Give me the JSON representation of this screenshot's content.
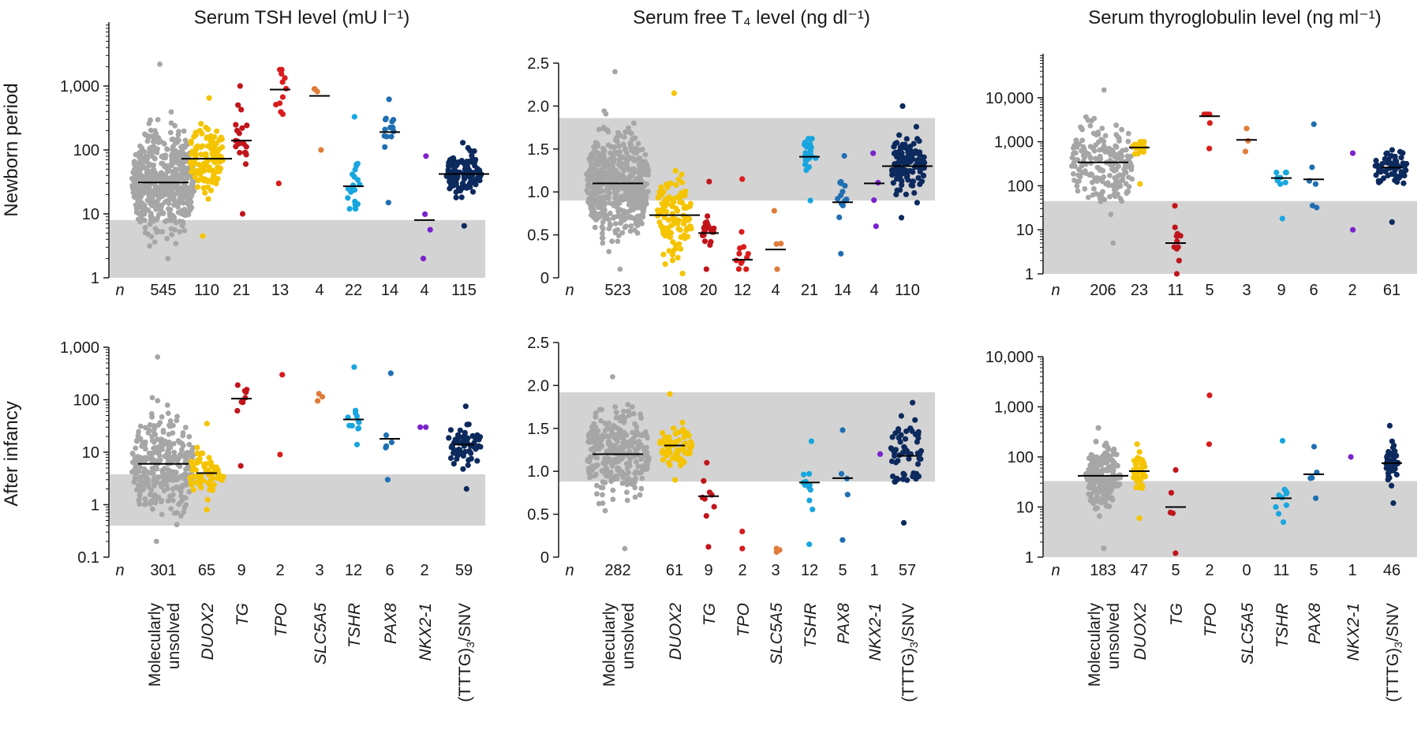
{
  "row_labels": [
    "Newborn period",
    "After infancy"
  ],
  "n_label": "n",
  "x_group_labels": [
    "Molecularly unsolved",
    "DUOX2",
    "TG",
    "TPO",
    "SLC5A5",
    "TSHR",
    "PAX8",
    "NKX2-1",
    "(TTTG)3/SNV"
  ],
  "colors": {
    "Molecularly unsolved": "#a6a6a6",
    "DUOX2": "#f5c400",
    "TG": "#c0151b",
    "TPO": "#d91c1c",
    "SLC5A5": "#e07b39",
    "TSHR": "#17a6df",
    "PAX8": "#1f6fb2",
    "NKX2-1": "#7b22cc",
    "(TTTG)3/SNV": "#0d2a5e",
    "reference_band": "#d3d3d3",
    "median_line": "#000000"
  },
  "chart_data": [
    {
      "type": "scatter",
      "panel": "tsh-newborn",
      "title": "Serum TSH level (mU l⁻¹)",
      "row": "Newborn period",
      "yscale": "log",
      "ylim": [
        1,
        10000
      ],
      "yticks": [
        1,
        10,
        100,
        1000
      ],
      "ytick_labels": [
        "1",
        "10",
        "100",
        "1,000"
      ],
      "reference_range": [
        1,
        8
      ],
      "groups": [
        "Molecularly unsolved",
        "DUOX2",
        "TG",
        "TPO",
        "SLC5A5",
        "TSHR",
        "PAX8",
        "NKX2-1",
        "(TTTG)3/SNV"
      ],
      "n": [
        545,
        110,
        21,
        13,
        4,
        22,
        14,
        4,
        115
      ],
      "n_labels": [
        "545",
        "110",
        "21",
        "13",
        "4",
        "22",
        "14",
        "4",
        "115"
      ],
      "medians": [
        31,
        73,
        140,
        880,
        700,
        27,
        190,
        8,
        42
      ],
      "ranges": [
        [
          2,
          2200
        ],
        [
          4.5,
          650
        ],
        [
          10,
          1000
        ],
        [
          30,
          1800
        ],
        [
          100,
          900
        ],
        [
          12,
          330
        ],
        [
          15,
          620
        ],
        [
          2,
          80
        ],
        [
          6.5,
          130
        ]
      ]
    },
    {
      "type": "scatter",
      "panel": "t4-newborn",
      "title": "Serum free T₄ level (ng dl⁻¹)",
      "row": "Newborn period",
      "yscale": "linear",
      "ylim": [
        0,
        2.5
      ],
      "yticks": [
        0,
        0.5,
        1.0,
        1.5,
        2.0,
        2.5
      ],
      "ytick_labels": [
        "0",
        "0.5",
        "1.0",
        "1.5",
        "2.0",
        "2.5"
      ],
      "reference_range": [
        0.9,
        1.86
      ],
      "groups": [
        "Molecularly unsolved",
        "DUOX2",
        "TG",
        "TPO",
        "SLC5A5",
        "TSHR",
        "PAX8",
        "NKX2-1",
        "(TTTG)3/SNV"
      ],
      "n": [
        523,
        108,
        20,
        12,
        4,
        21,
        14,
        4,
        110
      ],
      "n_labels": [
        "523",
        "108",
        "20",
        "12",
        "4",
        "21",
        "14",
        "4",
        "110"
      ],
      "medians": [
        1.1,
        0.73,
        0.52,
        0.21,
        0.33,
        1.41,
        0.88,
        1.1,
        1.3
      ],
      "ranges": [
        [
          0.1,
          2.4
        ],
        [
          0.05,
          2.15
        ],
        [
          0.1,
          1.12
        ],
        [
          0.1,
          1.15
        ],
        [
          0.1,
          0.78
        ],
        [
          0.9,
          1.62
        ],
        [
          0.28,
          1.42
        ],
        [
          0.6,
          1.45
        ],
        [
          0.7,
          2.0
        ]
      ]
    },
    {
      "type": "scatter",
      "panel": "tg-newborn",
      "title": "Serum thyroglobulin level (ng ml⁻¹)",
      "row": "Newborn period",
      "yscale": "log",
      "ylim": [
        1,
        100000
      ],
      "yticks": [
        1,
        10,
        100,
        1000,
        10000
      ],
      "ytick_labels": [
        "1",
        "10",
        "100",
        "1,000",
        "10,000"
      ],
      "reference_range": [
        1,
        45
      ],
      "groups": [
        "Molecularly unsolved",
        "DUOX2",
        "TG",
        "TPO",
        "SLC5A5",
        "TSHR",
        "PAX8",
        "NKX2-1",
        "(TTTG)3/SNV"
      ],
      "n": [
        206,
        23,
        11,
        5,
        3,
        9,
        6,
        2,
        61
      ],
      "n_labels": [
        "206",
        "23",
        "11",
        "5",
        "3",
        "9",
        "6",
        "2",
        "61"
      ],
      "medians": [
        340,
        740,
        5,
        3800,
        1100,
        150,
        140,
        null,
        260
      ],
      "ranges": [
        [
          5,
          15000
        ],
        [
          110,
          1000
        ],
        [
          1,
          35
        ],
        [
          700,
          4200
        ],
        [
          600,
          2000
        ],
        [
          18,
          200
        ],
        [
          32,
          2500
        ],
        [
          10,
          550
        ],
        [
          15,
          650
        ]
      ]
    },
    {
      "type": "scatter",
      "panel": "tsh-infancy",
      "title": "",
      "row": "After infancy",
      "yscale": "log",
      "ylim": [
        0.1,
        1000
      ],
      "yticks": [
        0.1,
        1,
        10,
        100,
        1000
      ],
      "ytick_labels": [
        "0.1",
        "1",
        "10",
        "100",
        "1,000"
      ],
      "reference_range": [
        0.4,
        3.8
      ],
      "groups": [
        "Molecularly unsolved",
        "DUOX2",
        "TG",
        "TPO",
        "SLC5A5",
        "TSHR",
        "PAX8",
        "NKX2-1",
        "(TTTG)3/SNV"
      ],
      "n": [
        301,
        65,
        9,
        2,
        3,
        12,
        6,
        2,
        59
      ],
      "n_labels": [
        "301",
        "65",
        "9",
        "2",
        "3",
        "12",
        "6",
        "2",
        "59"
      ],
      "medians": [
        6,
        4,
        105,
        null,
        null,
        42,
        18,
        null,
        14
      ],
      "ranges": [
        [
          0.2,
          650
        ],
        [
          0.8,
          35
        ],
        [
          5.5,
          190
        ],
        [
          9,
          300
        ],
        [
          95,
          130
        ],
        [
          14,
          420
        ],
        [
          3,
          320
        ],
        [
          30,
          30
        ],
        [
          2,
          75
        ]
      ]
    },
    {
      "type": "scatter",
      "panel": "t4-infancy",
      "title": "",
      "row": "After infancy",
      "yscale": "linear",
      "ylim": [
        0,
        2.5
      ],
      "yticks": [
        0,
        0.5,
        1.0,
        1.5,
        2.0,
        2.5
      ],
      "ytick_labels": [
        "0",
        "0.5",
        "1.0",
        "1.5",
        "2.0",
        "2.5"
      ],
      "reference_range": [
        0.88,
        1.92
      ],
      "groups": [
        "Molecularly unsolved",
        "DUOX2",
        "TG",
        "TPO",
        "SLC5A5",
        "TSHR",
        "PAX8",
        "NKX2-1",
        "(TTTG)3/SNV"
      ],
      "n": [
        282,
        61,
        9,
        2,
        3,
        12,
        5,
        1,
        57
      ],
      "n_labels": [
        "282",
        "61",
        "9",
        "2",
        "3",
        "12",
        "5",
        "1",
        "57"
      ],
      "medians": [
        1.2,
        1.3,
        0.71,
        null,
        null,
        0.87,
        0.92,
        null,
        1.18
      ],
      "ranges": [
        [
          0.1,
          2.1
        ],
        [
          0.9,
          1.9
        ],
        [
          0.12,
          1.1
        ],
        [
          0.1,
          0.3
        ],
        [
          0.06,
          0.1
        ],
        [
          0.15,
          1.35
        ],
        [
          0.2,
          1.48
        ],
        [
          1.2,
          1.2
        ],
        [
          0.4,
          1.8
        ]
      ]
    },
    {
      "type": "scatter",
      "panel": "tg-infancy",
      "title": "",
      "row": "After infancy",
      "yscale": "log",
      "ylim": [
        1,
        10000
      ],
      "yticks": [
        1,
        10,
        100,
        1000,
        10000
      ],
      "ytick_labels": [
        "1",
        "10",
        "100",
        "1,000",
        "10,000"
      ],
      "reference_range": [
        1,
        33
      ],
      "groups": [
        "Molecularly unsolved",
        "DUOX2",
        "TG",
        "TPO",
        "SLC5A5",
        "TSHR",
        "PAX8",
        "NKX2-1",
        "(TTTG)3/SNV"
      ],
      "n": [
        183,
        47,
        5,
        2,
        0,
        11,
        5,
        1,
        46
      ],
      "n_labels": [
        "183",
        "47",
        "5",
        "2",
        "0",
        "11",
        "5",
        "1",
        "46"
      ],
      "medians": [
        42,
        52,
        10,
        null,
        null,
        15,
        45,
        null,
        75
      ],
      "ranges": [
        [
          1.5,
          380
        ],
        [
          6,
          180
        ],
        [
          1.2,
          55
        ],
        [
          180,
          1700
        ],
        null,
        [
          5,
          210
        ],
        [
          15,
          160
        ],
        [
          100,
          100
        ],
        [
          12,
          420
        ]
      ]
    }
  ]
}
